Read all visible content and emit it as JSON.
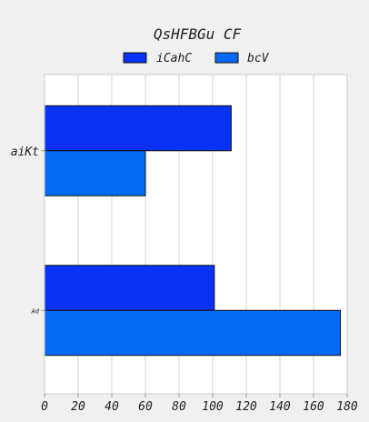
{
  "chart_data": {
    "type": "bar",
    "orientation": "horizontal",
    "title": "QsHFBGu CF",
    "xlabel": "",
    "ylabel": "",
    "categories": [
      "aiKt",
      "Ad"
    ],
    "series": [
      {
        "name": "iCahC",
        "values": [
          111,
          101
        ],
        "color": "#0a32f5"
      },
      {
        "name": "bcV",
        "values": [
          60,
          176
        ],
        "color": "#0569f6"
      }
    ],
    "xlim": [
      0,
      180
    ],
    "xticks": [
      "0",
      "20",
      "40",
      "60",
      "80",
      "100",
      "120",
      "140",
      "160",
      "180"
    ],
    "grid": true,
    "legend_position": "top-center"
  }
}
